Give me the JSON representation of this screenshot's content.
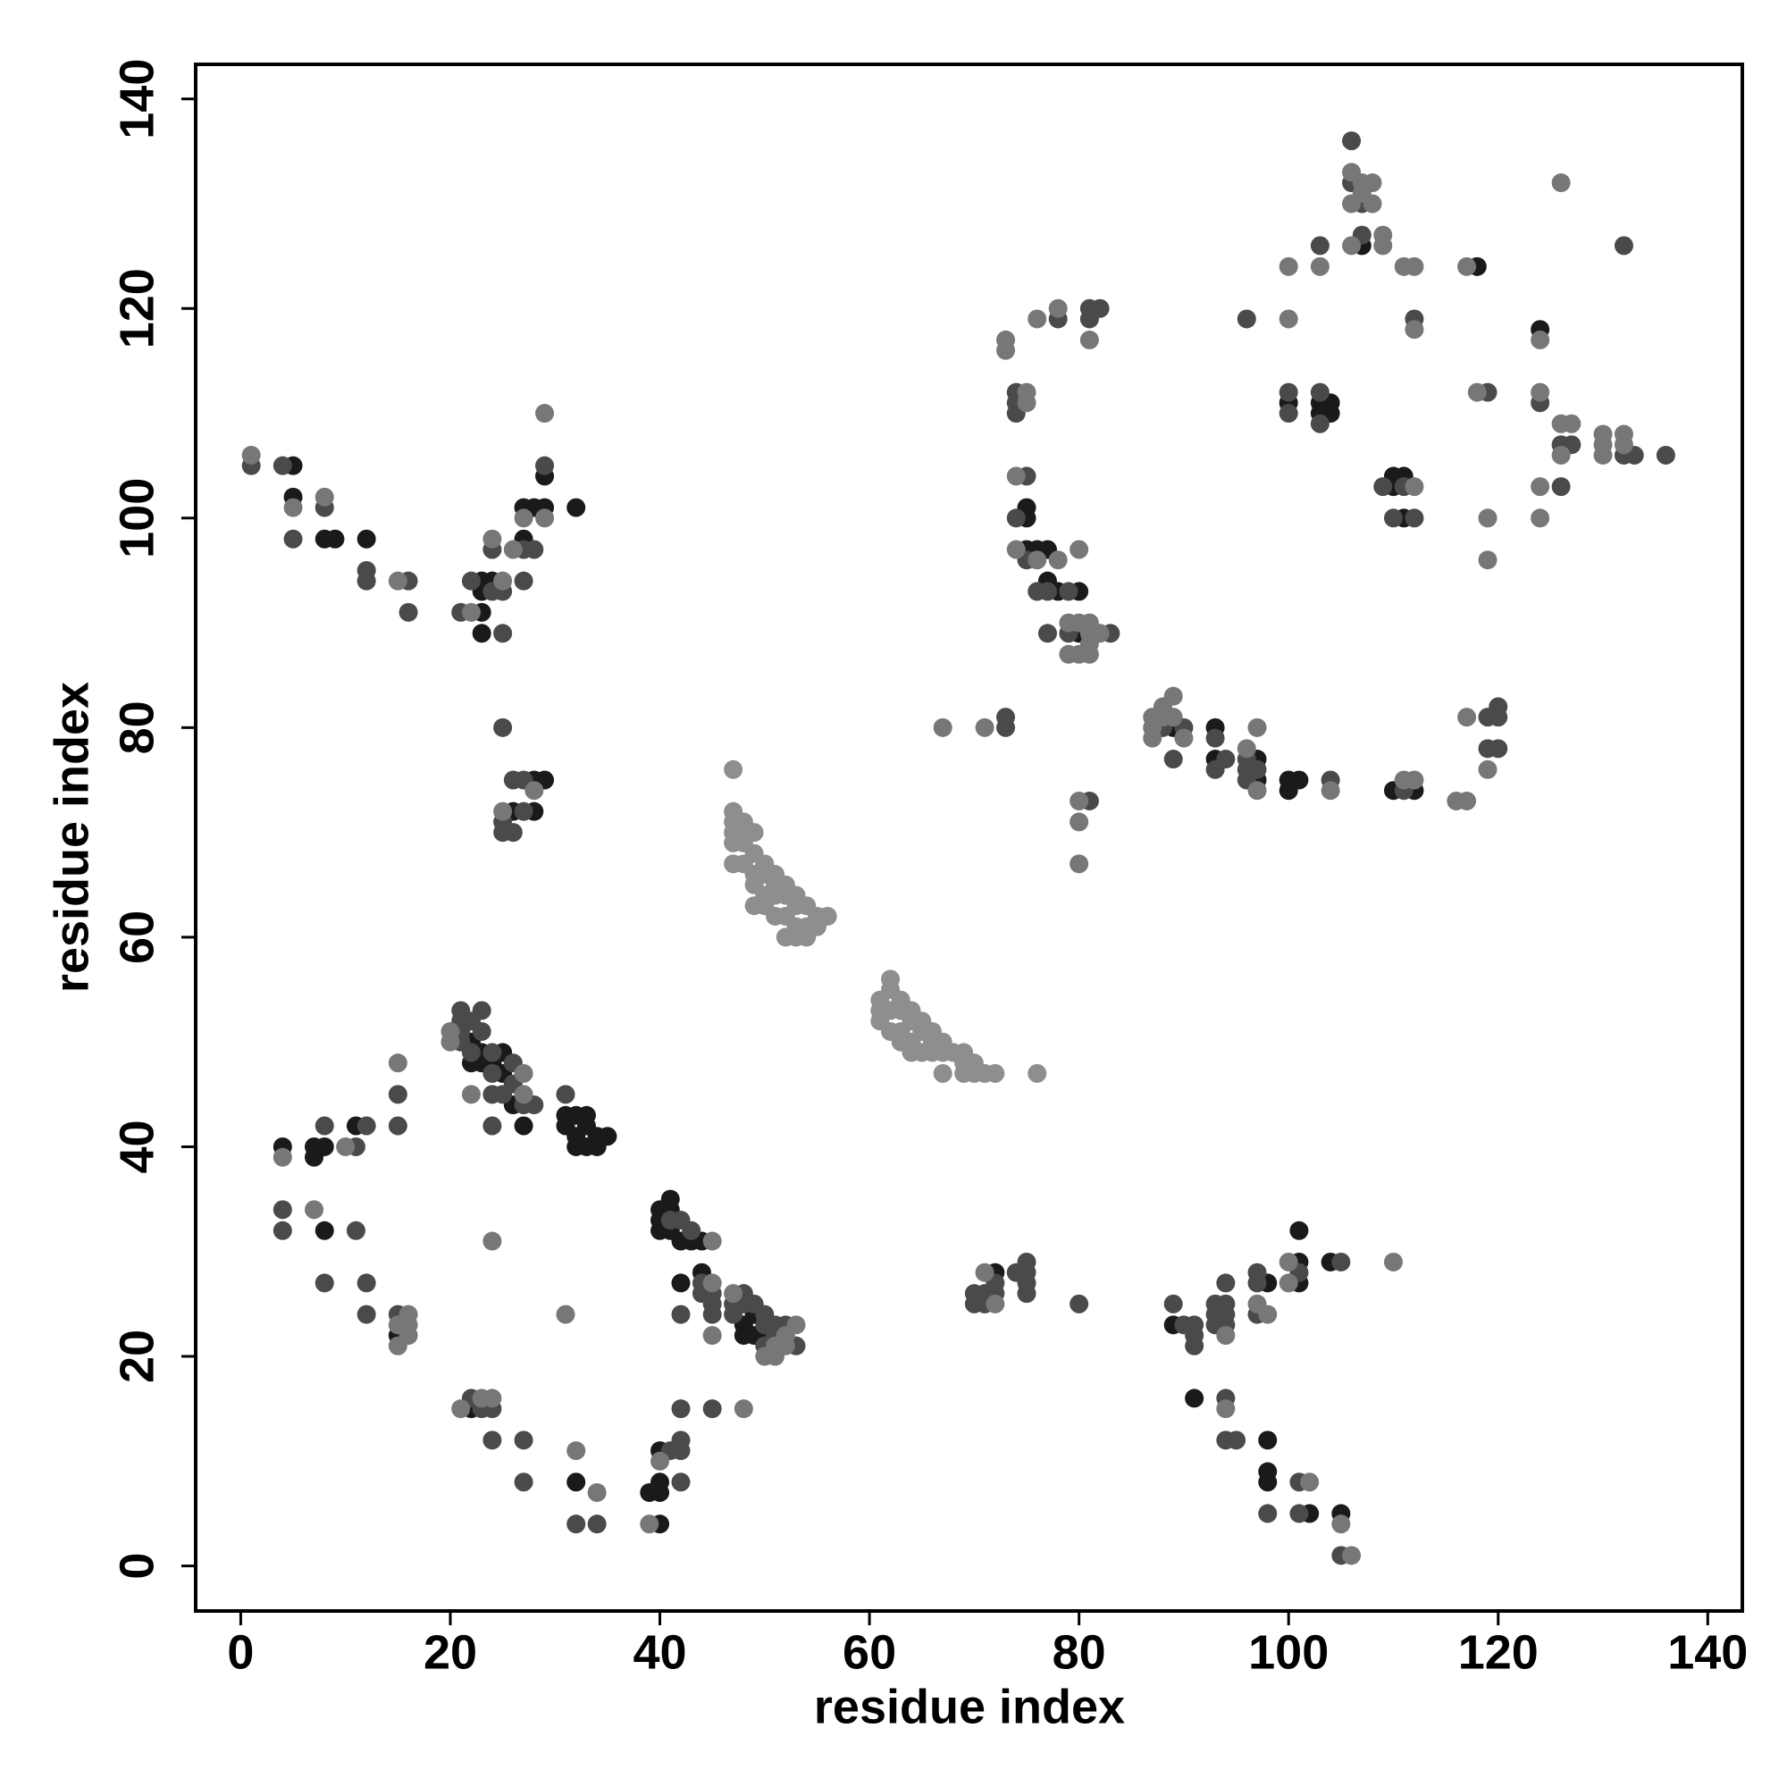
{
  "chart_data": {
    "type": "scatter",
    "x_label": "residue index",
    "y_label": "residue index",
    "xlim": [
      -4.3,
      143.3
    ],
    "ylim": [
      -4.3,
      143.3
    ],
    "xticks": [
      0,
      20,
      40,
      60,
      80,
      100,
      120,
      140
    ],
    "yticks": [
      0,
      20,
      40,
      60,
      80,
      100,
      120,
      140
    ],
    "grid": false,
    "series": [
      {
        "color": "#1a1a1a",
        "x": [
          5,
          5,
          8,
          9,
          12,
          23,
          23,
          23,
          23,
          24,
          27,
          27,
          28,
          29,
          29,
          32,
          26,
          28,
          28,
          29,
          22,
          22,
          23,
          23,
          24,
          25,
          25,
          26,
          27,
          31,
          31,
          32,
          32,
          32,
          33,
          33,
          33,
          34,
          34,
          35,
          11,
          8,
          7,
          7,
          4,
          8,
          15,
          40,
          40,
          40,
          41,
          41,
          41,
          42,
          43,
          44,
          42,
          44,
          48,
          48,
          49,
          49,
          50,
          22,
          32,
          39,
          40,
          40,
          40,
          40,
          72,
          89,
          91,
          98,
          98,
          98,
          98,
          101,
          101,
          101,
          102,
          104,
          105,
          89,
          93,
          93,
          97,
          97,
          100,
          100,
          101,
          110,
          112,
          75,
          75,
          75,
          76,
          77,
          77,
          78,
          80,
          80,
          100,
          103,
          103,
          104,
          104,
          107,
          110,
          110,
          111,
          111,
          118,
          124
        ],
        "values": [
          105,
          102,
          98,
          98,
          98,
          93,
          94,
          91,
          89,
          94,
          98,
          101,
          101,
          101,
          104,
          101,
          72,
          75,
          72,
          75,
          50,
          48,
          49,
          48,
          48,
          49,
          47,
          44,
          42,
          43,
          42,
          43,
          41,
          40,
          43,
          42,
          40,
          41,
          40,
          41,
          42,
          40,
          40,
          39,
          40,
          32,
          22,
          34,
          33,
          32,
          35,
          34,
          32,
          31,
          31,
          31,
          27,
          28,
          23,
          22,
          24,
          22,
          22,
          15,
          8,
          7,
          11,
          8,
          7,
          4,
          28,
          23,
          16,
          27,
          12,
          9,
          8,
          32,
          29,
          27,
          5,
          29,
          5,
          80,
          80,
          77,
          77,
          75,
          75,
          74,
          75,
          74,
          74,
          101,
          100,
          97,
          97,
          97,
          94,
          93,
          93,
          89,
          111,
          111,
          110,
          111,
          110,
          126,
          104,
          103,
          104,
          100,
          124,
          118
        ]
      },
      {
        "color": "#4a4a4a",
        "x": [
          1,
          4,
          5,
          8,
          12,
          12,
          16,
          16,
          21,
          22,
          24,
          25,
          24,
          25,
          27,
          27,
          28,
          29,
          25,
          25,
          25,
          26,
          26,
          27,
          27,
          21,
          21,
          21,
          21,
          22,
          22,
          23,
          23,
          24,
          24,
          24,
          24,
          25,
          26,
          26,
          27,
          28,
          31,
          15,
          15,
          12,
          11,
          8,
          4,
          4,
          11,
          8,
          12,
          12,
          15,
          41,
          42,
          43,
          42,
          44,
          44,
          45,
          45,
          45,
          47,
          47,
          48,
          48,
          49,
          50,
          50,
          50,
          51,
          51,
          52,
          53,
          22,
          23,
          24,
          24,
          27,
          27,
          32,
          34,
          41,
          42,
          42,
          42,
          42,
          45,
          70,
          70,
          71,
          71,
          72,
          72,
          74,
          75,
          75,
          75,
          75,
          80,
          89,
          90,
          91,
          91,
          91,
          93,
          93,
          93,
          94,
          94,
          94,
          94,
          94,
          94,
          95,
          97,
          97,
          97,
          98,
          101,
          101,
          101,
          105,
          105,
          73,
          73,
          81,
          88,
          89,
          90,
          93,
          93,
          94,
          96,
          96,
          96,
          97,
          104,
          111,
          119,
          119,
          120,
          120,
          120,
          74,
          74,
          74,
          75,
          74,
          75,
          76,
          77,
          77,
          79,
          79,
          83,
          78,
          81,
          81,
          82,
          96,
          100,
          100,
          103,
          103,
          103,
          106,
          106,
          107,
          107,
          110,
          109,
          111,
          112,
          112,
          119,
          124,
          126,
          126,
          127,
          132,
          132,
          133,
          136
        ],
        "values": [
          105,
          105,
          98,
          101,
          95,
          94,
          94,
          91,
          91,
          94,
          93,
          93,
          97,
          89,
          97,
          94,
          97,
          105,
          80,
          71,
          70,
          70,
          75,
          75,
          72,
          53,
          52,
          51,
          50,
          52,
          49,
          53,
          51,
          49,
          47,
          45,
          42,
          45,
          48,
          46,
          44,
          44,
          45,
          45,
          42,
          42,
          40,
          42,
          34,
          32,
          32,
          27,
          27,
          24,
          24,
          33,
          33,
          32,
          24,
          27,
          26,
          26,
          25,
          24,
          25,
          24,
          26,
          25,
          25,
          24,
          23,
          21,
          23,
          22,
          23,
          21,
          16,
          15,
          15,
          12,
          12,
          8,
          4,
          4,
          11,
          12,
          11,
          8,
          15,
          15,
          26,
          25,
          26,
          25,
          27,
          26,
          28,
          29,
          28,
          27,
          26,
          25,
          25,
          23,
          23,
          22,
          21,
          25,
          24,
          23,
          27,
          25,
          24,
          23,
          16,
          12,
          12,
          28,
          27,
          24,
          5,
          28,
          8,
          5,
          29,
          1,
          81,
          80,
          73,
          80,
          77,
          80,
          79,
          76,
          77,
          77,
          76,
          75,
          76,
          75,
          74,
          81,
          78,
          82,
          81,
          78,
          112,
          111,
          110,
          104,
          100,
          96,
          93,
          93,
          89,
          93,
          89,
          89,
          119,
          120,
          119,
          120,
          119,
          112,
          110,
          126,
          112,
          109,
          136,
          132,
          130,
          127,
          100,
          103,
          103,
          119,
          100,
          112,
          111,
          107,
          103,
          107,
          126,
          106,
          106,
          106
        ]
      },
      {
        "color": "#777777",
        "x": [
          1,
          5,
          8,
          15,
          22,
          25,
          24,
          26,
          27,
          29,
          29,
          25,
          28,
          20,
          20,
          22,
          27,
          27,
          15,
          10,
          4,
          7,
          15,
          15,
          16,
          16,
          16,
          24,
          31,
          45,
          45,
          45,
          47,
          50,
          51,
          51,
          52,
          52,
          53,
          21,
          23,
          24,
          32,
          34,
          39,
          40,
          48,
          71,
          72,
          94,
          94,
          97,
          98,
          100,
          100,
          102,
          105,
          106,
          110,
          67,
          71,
          80,
          80,
          80,
          87,
          87,
          87,
          88,
          88,
          89,
          89,
          90,
          96,
          97,
          97,
          104,
          111,
          112,
          116,
          117,
          117,
          119,
          73,
          73,
          75,
          75,
          74,
          74,
          76,
          78,
          80,
          80,
          79,
          79,
          80,
          81,
          81,
          81,
          81,
          82,
          76,
          78,
          81,
          100,
          100,
          103,
          106,
          106,
          106,
          107,
          107,
          108,
          108,
          109,
          109,
          111,
          112,
          112,
          112,
          117,
          118,
          119,
          119,
          124,
          124,
          124,
          124,
          126,
          126,
          126,
          127,
          130,
          130,
          130,
          132,
          132
        ],
        "values": [
          106,
          101,
          102,
          94,
          91,
          94,
          98,
          97,
          100,
          100,
          110,
          72,
          74,
          51,
          50,
          45,
          47,
          45,
          48,
          40,
          39,
          34,
          23,
          21,
          24,
          23,
          22,
          31,
          24,
          31,
          27,
          22,
          26,
          20,
          21,
          20,
          22,
          21,
          23,
          15,
          16,
          16,
          11,
          7,
          4,
          10,
          15,
          28,
          25,
          22,
          15,
          25,
          24,
          29,
          27,
          8,
          4,
          1,
          29,
          80,
          80,
          73,
          71,
          67,
          81,
          80,
          79,
          82,
          81,
          83,
          81,
          79,
          78,
          80,
          74,
          74,
          75,
          75,
          73,
          81,
          73,
          76,
          117,
          116,
          112,
          111,
          104,
          97,
          96,
          96,
          97,
          90,
          90,
          87,
          87,
          90,
          89,
          87,
          88,
          89,
          119,
          120,
          117,
          124,
          119,
          124,
          133,
          130,
          126,
          132,
          131,
          132,
          130,
          127,
          126,
          124,
          124,
          118,
          103,
          124,
          112,
          100,
          96,
          117,
          112,
          103,
          100,
          132,
          109,
          106,
          109,
          108,
          107,
          106,
          108,
          107
        ]
      },
      {
        "color": "#8e8e8e",
        "x": [
          47,
          47,
          47,
          47,
          47,
          47,
          48,
          48,
          48,
          48,
          49,
          49,
          49,
          49,
          49,
          50,
          50,
          50,
          50,
          51,
          51,
          51,
          51,
          52,
          52,
          52,
          52,
          53,
          53,
          53,
          53,
          54,
          54,
          54,
          55,
          55,
          56,
          61,
          61,
          61,
          62,
          62,
          62,
          62,
          63,
          63,
          63,
          63,
          64,
          64,
          64,
          64,
          65,
          65,
          65,
          66,
          66,
          66,
          67,
          67,
          67,
          68,
          69,
          69,
          69,
          70,
          70,
          71,
          72,
          76
        ],
        "values": [
          76,
          72,
          71,
          70,
          69,
          67,
          71,
          70,
          69,
          67,
          70,
          68,
          66,
          65,
          63,
          67,
          66,
          64,
          63,
          66,
          65,
          64,
          62,
          65,
          64,
          62,
          60,
          64,
          63,
          61,
          60,
          63,
          61,
          60,
          62,
          61,
          62,
          54,
          53,
          52,
          56,
          55,
          53,
          51,
          54,
          53,
          51,
          50,
          53,
          52,
          50,
          49,
          52,
          51,
          49,
          51,
          50,
          49,
          50,
          49,
          47,
          49,
          49,
          48,
          47,
          48,
          47,
          47,
          47,
          47
        ]
      }
    ]
  }
}
